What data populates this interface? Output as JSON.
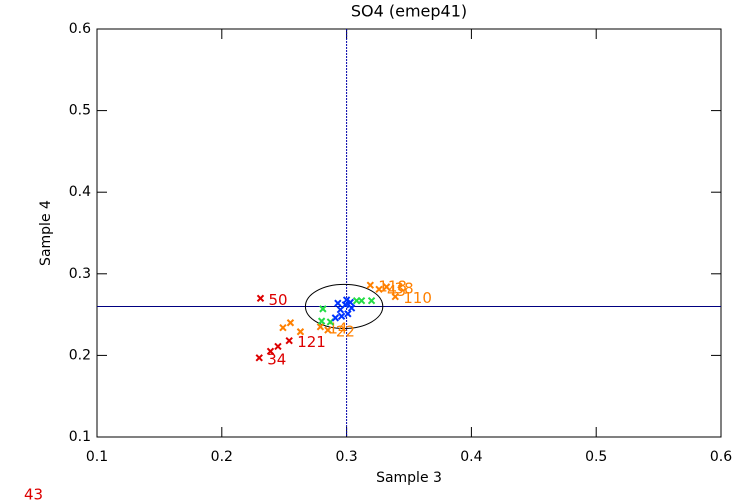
{
  "chart_data": {
    "type": "scatter",
    "title": "SO4 (emep41)",
    "xlabel": "Sample 3",
    "ylabel": "Sample 4",
    "xlim": [
      0.1,
      0.6
    ],
    "ylim": [
      0.1,
      0.6
    ],
    "xticks": [
      0.1,
      0.2,
      0.3,
      0.4,
      0.5,
      0.6
    ],
    "yticks": [
      0.1,
      0.2,
      0.3,
      0.4,
      0.5,
      0.6
    ],
    "grid": false,
    "vline": 0.3,
    "hline": 0.26,
    "ellipse": {
      "cx": 0.298,
      "cy": 0.26,
      "rx": 0.031,
      "ry": 0.027
    },
    "footnote": "43",
    "series": [
      {
        "color": "#dd0000",
        "x": [
          0.231,
          0.23,
          0.239,
          0.245,
          0.254
        ],
        "y": [
          0.27,
          0.197,
          0.205,
          0.211,
          0.218
        ],
        "labels": [
          "50",
          "34",
          null,
          null,
          "121"
        ]
      },
      {
        "color": "#ff8000",
        "x": [
          0.319,
          0.326,
          0.332,
          0.339,
          0.285,
          0.279,
          0.249,
          0.255,
          0.263
        ],
        "y": [
          0.286,
          0.281,
          0.284,
          0.272,
          0.231,
          0.235,
          0.234,
          0.24,
          0.229
        ],
        "labels": [
          "118",
          "45",
          "38",
          "110",
          "22",
          "14",
          null,
          null,
          null
        ]
      },
      {
        "color": "#22dd44",
        "x": [
          0.28,
          0.287,
          0.308,
          0.312,
          0.32,
          0.281
        ],
        "y": [
          0.242,
          0.241,
          0.267,
          0.267,
          0.267,
          0.257
        ],
        "labels": [
          null,
          null,
          null,
          null,
          null,
          null
        ]
      },
      {
        "color": "#0033ff",
        "x": [
          0.291,
          0.295,
          0.299,
          0.303,
          0.293,
          0.301,
          0.296,
          0.304,
          0.3
        ],
        "y": [
          0.246,
          0.256,
          0.262,
          0.265,
          0.264,
          0.251,
          0.248,
          0.258,
          0.268
        ],
        "labels": [
          null,
          null,
          null,
          null,
          null,
          null,
          null,
          null,
          null
        ]
      }
    ]
  }
}
